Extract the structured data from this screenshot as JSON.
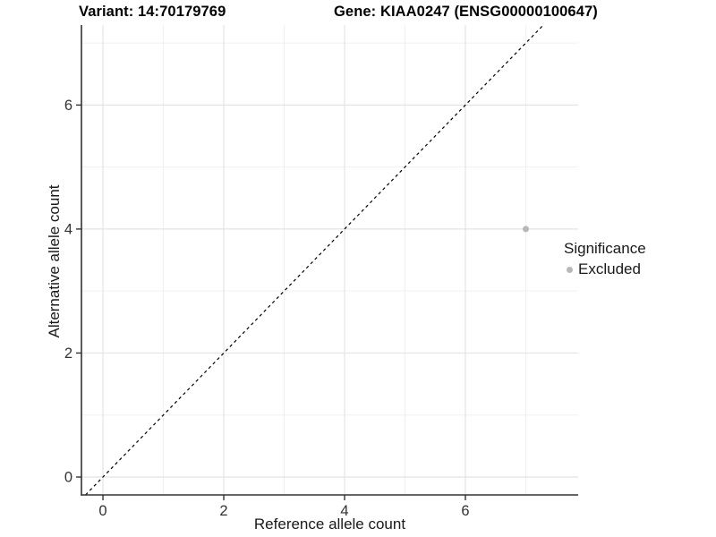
{
  "chart_data": {
    "type": "scatter",
    "title_left": "Variant: 14:70179769",
    "title_right": "Gene: KIAA0247 (ENSG00000100647)",
    "xlabel": "Reference allele count",
    "ylabel": "Alternative allele count",
    "points": [
      {
        "x": 7,
        "y": 4,
        "series": "Excluded"
      }
    ],
    "x_ticks": [
      0,
      2,
      4,
      6
    ],
    "y_ticks": [
      0,
      2,
      4,
      6
    ],
    "x_minor_ticks": [
      1,
      3,
      5,
      7
    ],
    "y_minor_ticks": [
      1,
      3,
      5,
      7
    ],
    "xlim": [
      -0.356,
      7.867
    ],
    "ylim": [
      -0.289,
      7.29
    ],
    "reference_line": {
      "kind": "abline",
      "slope": 1,
      "intercept": 0,
      "style": "dashed",
      "color": "#000000"
    },
    "grid": true,
    "legend": {
      "title": "Significance",
      "position": "right",
      "items": [
        {
          "label": "Excluded",
          "color": "#b8b8b8"
        }
      ]
    },
    "colors": {
      "point": "#b8b8b8",
      "grid_major": "#e4e4e4",
      "grid_minor": "#f0f0f0",
      "axis": "#333333",
      "tick_label": "#333333"
    }
  }
}
